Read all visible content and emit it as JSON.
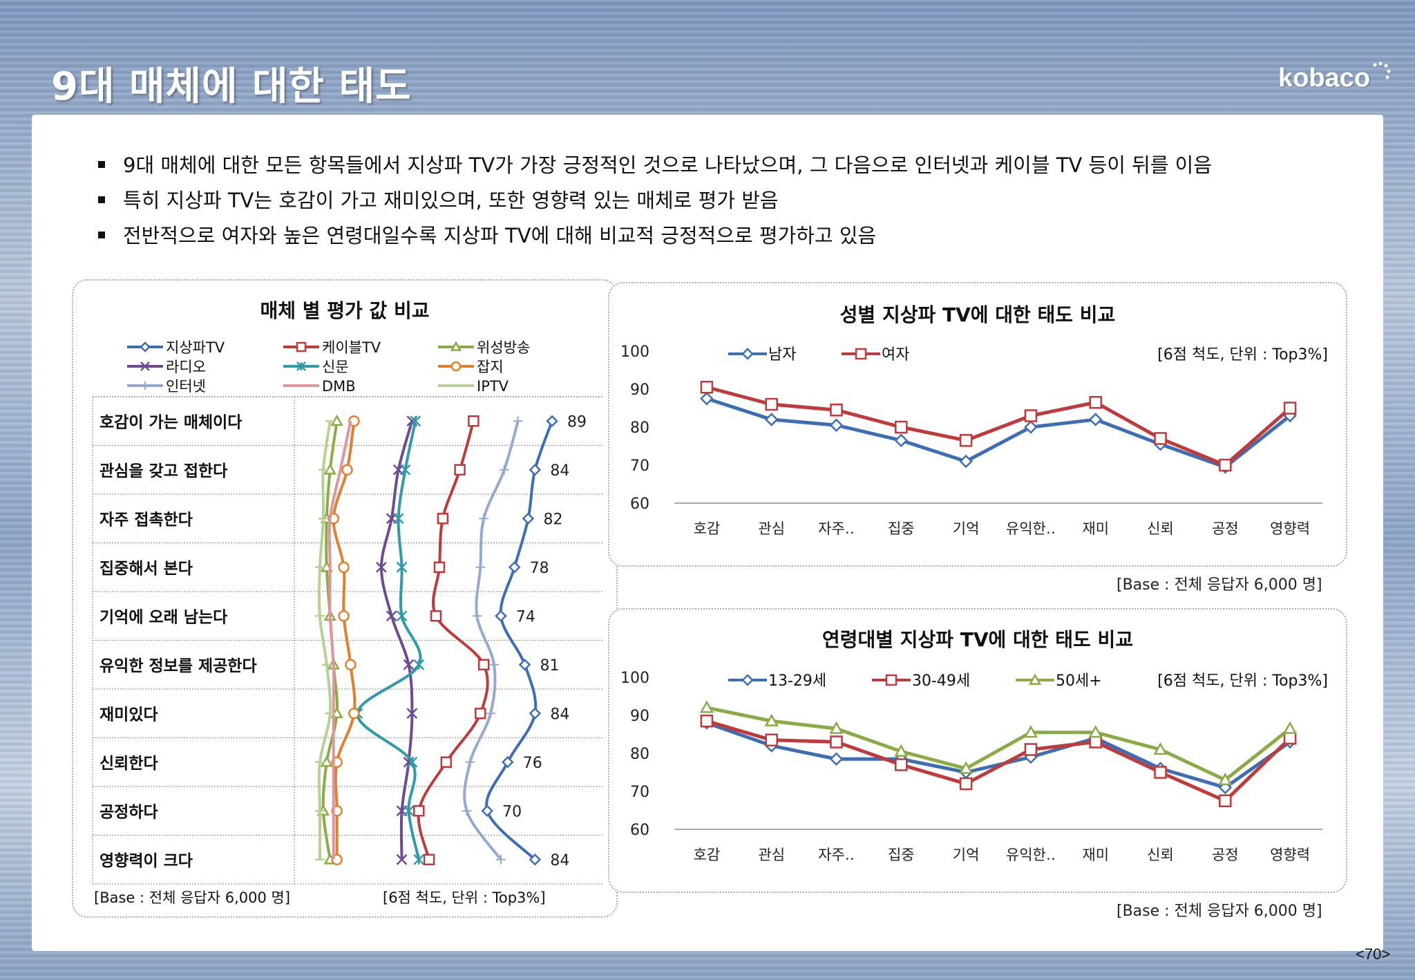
{
  "slide": {
    "title": "9대 매체에 대한 태도",
    "logo": "kobaco",
    "page": "<70>",
    "bullets": [
      "9대 매체에 대한 모든 항목들에서 지상파 TV가 가장 긍정적인 것으로 나타났으며, 그 다음으로 인터넷과 케이블 TV 등이 뒤를 이음",
      "특히 지상파 TV는 호감이 가고 재미있으며, 또한 영향력 있는 매체로 평가 받음",
      "전반적으로 여자와 높은 연령대일수록 지상파 TV에 대해 비교적 긍정적으로 평가하고 있음"
    ]
  },
  "chart_data": [
    {
      "type": "line",
      "title": "매체 별 평가 값 비교",
      "orientation": "vertical-profile",
      "categories": [
        "호감이 가는 매체이다",
        "관심을 갖고 접한다",
        "자주 접촉한다",
        "집중해서 본다",
        "기억에 오래 남는다",
        "유익한 정보를 제공한다",
        "재미있다",
        "신뢰한다",
        "공정하다",
        "영향력이 크다"
      ],
      "x_range": [
        0,
        100
      ],
      "data_labels_series": "지상파TV",
      "series": [
        {
          "name": "지상파TV",
          "color": "#3d6eb3",
          "marker": "diamond",
          "values": [
            89,
            84,
            82,
            78,
            74,
            81,
            84,
            76,
            70,
            84
          ]
        },
        {
          "name": "케이블TV",
          "color": "#c0393b",
          "marker": "square",
          "values": [
            66,
            62,
            57,
            56,
            55,
            69,
            68,
            58,
            50,
            53
          ]
        },
        {
          "name": "위성방송",
          "color": "#8aab45",
          "marker": "triangle",
          "values": [
            26,
            24,
            23,
            23,
            24,
            25,
            26,
            23,
            22,
            24
          ]
        },
        {
          "name": "라디오",
          "color": "#6d4a91",
          "marker": "x",
          "values": [
            48,
            44,
            42,
            39,
            42,
            47,
            48,
            47,
            45,
            45
          ]
        },
        {
          "name": "신문",
          "color": "#2f9aa8",
          "marker": "star",
          "values": [
            49,
            46,
            44,
            45,
            45,
            50,
            32,
            48,
            47,
            50
          ]
        },
        {
          "name": "잡지",
          "color": "#e0802c",
          "marker": "circle",
          "values": [
            31,
            29,
            25,
            28,
            28,
            30,
            31,
            26,
            26,
            26
          ]
        },
        {
          "name": "인터넷",
          "color": "#97a9d1",
          "marker": "plus",
          "values": [
            79,
            75,
            69,
            68,
            67,
            72,
            71,
            65,
            64,
            74
          ]
        },
        {
          "name": "DMB",
          "color": "#e0949b",
          "marker": "none",
          "values": [
            30,
            27,
            24,
            24,
            24,
            25,
            25,
            25,
            25,
            25
          ]
        },
        {
          "name": "IPTV",
          "color": "#b6d193",
          "marker": "dash",
          "values": [
            24,
            22,
            22,
            21,
            21,
            23,
            24,
            21,
            21,
            21
          ]
        }
      ],
      "notes": [
        "[Base : 전체 응답자 6,000 명]",
        "[6점 척도, 단위 : Top3%]"
      ]
    },
    {
      "type": "line",
      "title": "성별 지상파 TV에 대한 태도 비교",
      "categories": [
        "호감",
        "관심",
        "자주‥",
        "집중",
        "기억",
        "유익한‥",
        "재미",
        "신뢰",
        "공정",
        "영향력"
      ],
      "yticks": [
        60,
        70,
        80,
        90,
        100
      ],
      "ylim": [
        60,
        100
      ],
      "legend_position": "top-left",
      "series": [
        {
          "name": "남자",
          "color": "#3d6eb3",
          "marker": "diamond",
          "values": [
            87.5,
            82,
            80.5,
            76.5,
            71,
            80,
            82,
            75.5,
            69.5,
            83
          ]
        },
        {
          "name": "여자",
          "color": "#c0393b",
          "marker": "square",
          "values": [
            90.5,
            86,
            84.5,
            80,
            76.5,
            83,
            86.5,
            77,
            70,
            85
          ]
        }
      ],
      "scale_note": "[6점 척도, 단위 : Top3%]",
      "base_note": "[Base : 전체 응답자 6,000 명]"
    },
    {
      "type": "line",
      "title": "연령대별 지상파 TV에 대한 태도 비교",
      "categories": [
        "호감",
        "관심",
        "자주‥",
        "집중",
        "기억",
        "유익한‥",
        "재미",
        "신뢰",
        "공정",
        "영향력"
      ],
      "yticks": [
        60,
        70,
        80,
        90,
        100
      ],
      "ylim": [
        60,
        100
      ],
      "legend_position": "top-left",
      "series": [
        {
          "name": "13-29세",
          "color": "#3d6eb3",
          "marker": "diamond",
          "values": [
            88,
            82,
            78.5,
            78.5,
            75,
            79,
            84,
            76,
            71,
            83
          ]
        },
        {
          "name": "30-49세",
          "color": "#c0393b",
          "marker": "square",
          "values": [
            88.5,
            83.5,
            83,
            77,
            72,
            81,
            83,
            75,
            67.5,
            84
          ]
        },
        {
          "name": "50세+",
          "color": "#8aab45",
          "marker": "triangle",
          "values": [
            92,
            88.5,
            86.5,
            80.5,
            76,
            85.5,
            85.5,
            81,
            73,
            86.5
          ]
        }
      ],
      "scale_note": "[6점 척도, 단위 : Top3%]",
      "base_note": "[Base : 전체 응답자 6,000 명]"
    }
  ]
}
